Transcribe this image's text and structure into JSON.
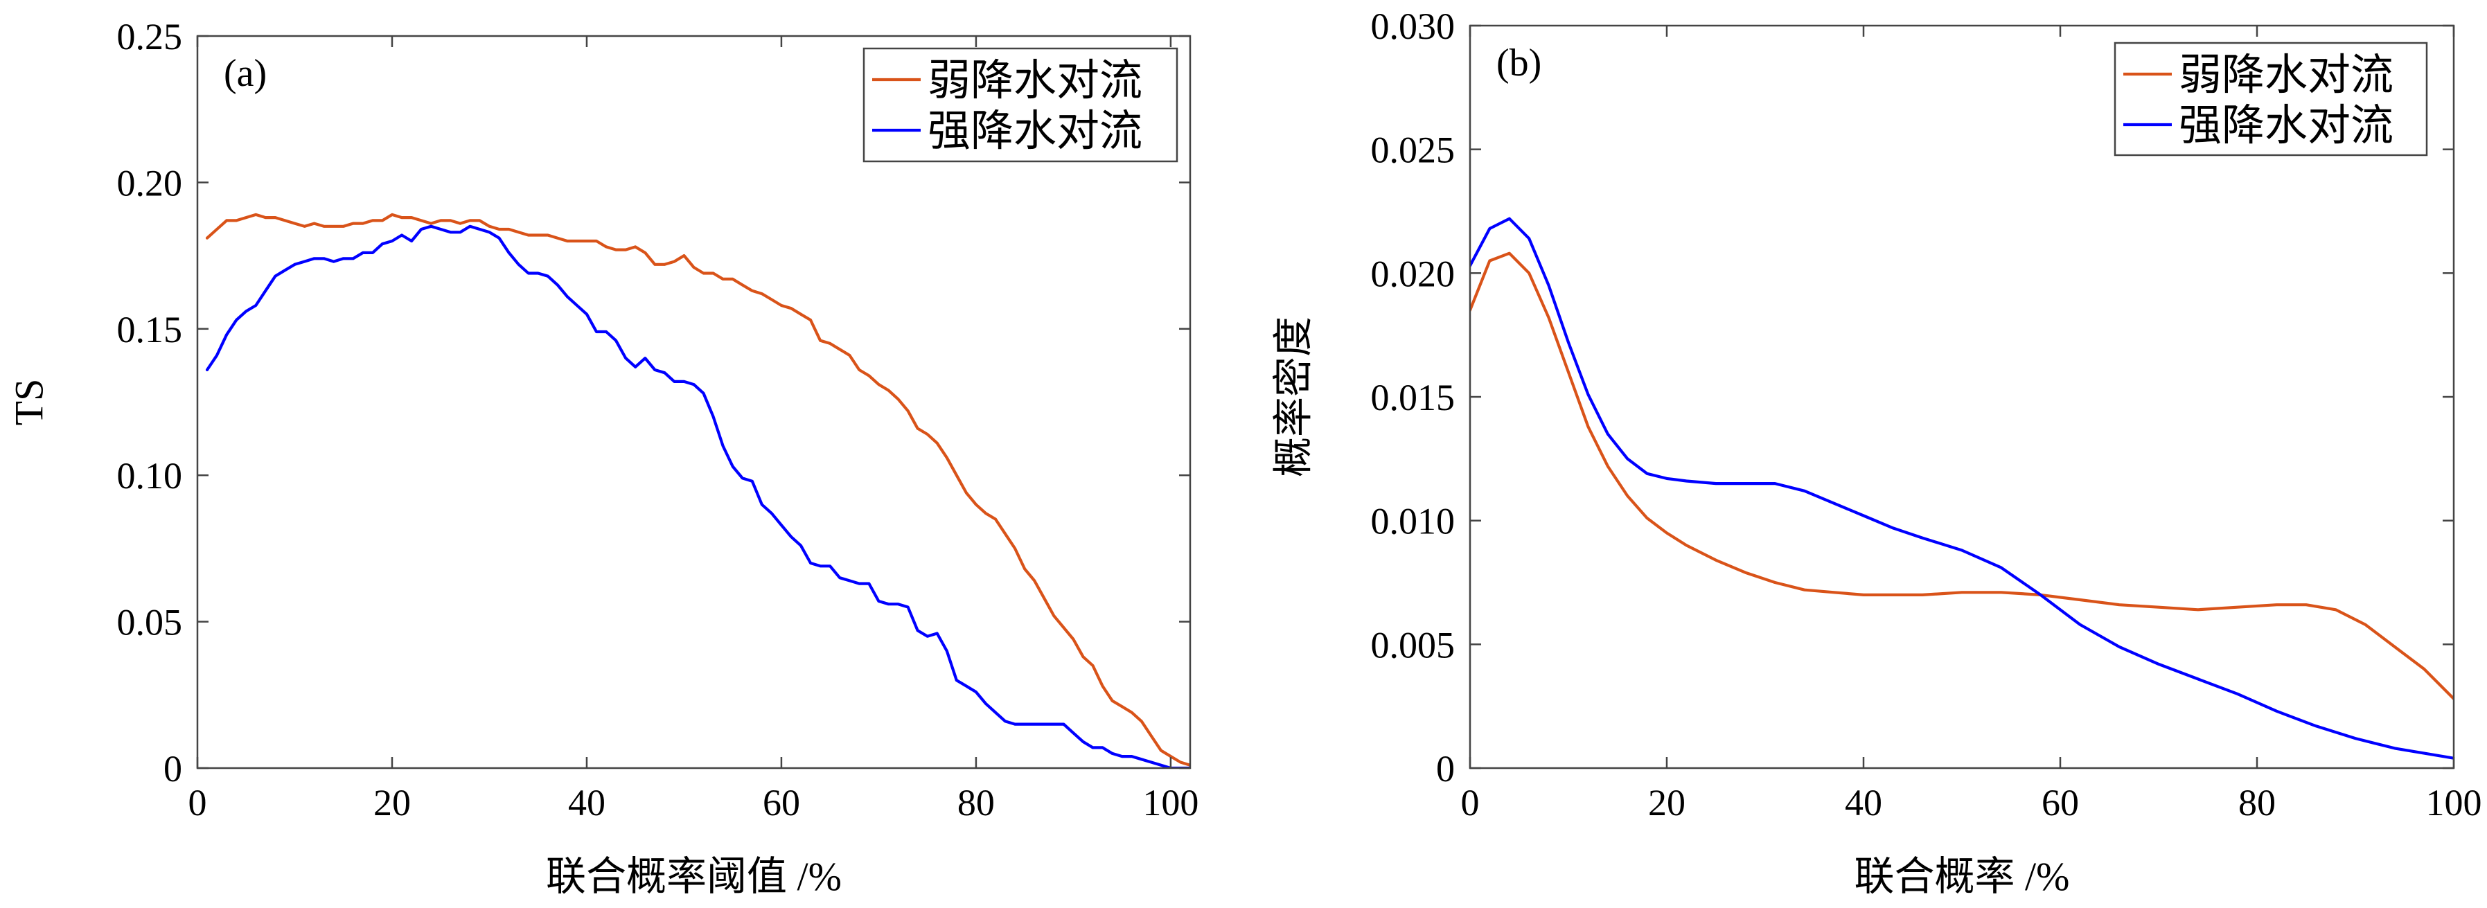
{
  "chart_data": [
    {
      "type": "line",
      "panel_label": "(a)",
      "xlabel": "联合概率阈值 /%",
      "ylabel": "TS",
      "xlim": [
        0,
        102
      ],
      "ylim": [
        0,
        0.25
      ],
      "xticks": [
        0,
        20,
        40,
        60,
        80,
        100
      ],
      "xtick_labels": [
        "0",
        "20",
        "40",
        "60",
        "80",
        "100"
      ],
      "yticks": [
        0,
        0.05,
        0.1,
        0.15,
        0.2,
        0.25
      ],
      "ytick_labels": [
        "0",
        "0.05",
        "0.10",
        "0.15",
        "0.20",
        "0.25"
      ],
      "legend_position": "top-right",
      "grid": false,
      "series": [
        {
          "name": "弱降水对流",
          "color": "#D95319",
          "x": [
            1,
            2,
            3,
            4,
            5,
            6,
            7,
            8,
            9,
            10,
            11,
            12,
            13,
            14,
            15,
            16,
            17,
            18,
            19,
            20,
            21,
            22,
            23,
            24,
            25,
            26,
            27,
            28,
            29,
            30,
            31,
            32,
            33,
            34,
            35,
            36,
            37,
            38,
            39,
            40,
            41,
            42,
            43,
            44,
            45,
            46,
            47,
            48,
            49,
            50,
            51,
            52,
            53,
            54,
            55,
            56,
            57,
            58,
            59,
            60,
            61,
            62,
            63,
            64,
            65,
            66,
            67,
            68,
            69,
            70,
            71,
            72,
            73,
            74,
            75,
            76,
            77,
            78,
            79,
            80,
            81,
            82,
            83,
            84,
            85,
            86,
            87,
            88,
            89,
            90,
            91,
            92,
            93,
            94,
            95,
            96,
            97,
            98,
            99,
            100,
            101,
            102
          ],
          "y": [
            0.181,
            0.184,
            0.187,
            0.187,
            0.188,
            0.189,
            0.188,
            0.188,
            0.187,
            0.186,
            0.185,
            0.186,
            0.185,
            0.185,
            0.185,
            0.186,
            0.186,
            0.187,
            0.187,
            0.189,
            0.188,
            0.188,
            0.187,
            0.186,
            0.187,
            0.187,
            0.186,
            0.187,
            0.187,
            0.185,
            0.184,
            0.184,
            0.183,
            0.182,
            0.182,
            0.182,
            0.181,
            0.18,
            0.18,
            0.18,
            0.18,
            0.178,
            0.177,
            0.177,
            0.178,
            0.176,
            0.172,
            0.172,
            0.173,
            0.175,
            0.171,
            0.169,
            0.169,
            0.167,
            0.167,
            0.165,
            0.163,
            0.162,
            0.16,
            0.158,
            0.157,
            0.155,
            0.153,
            0.146,
            0.145,
            0.143,
            0.141,
            0.136,
            0.134,
            0.131,
            0.129,
            0.126,
            0.122,
            0.116,
            0.114,
            0.111,
            0.106,
            0.1,
            0.094,
            0.09,
            0.087,
            0.085,
            0.08,
            0.075,
            0.068,
            0.064,
            0.058,
            0.052,
            0.048,
            0.044,
            0.038,
            0.035,
            0.028,
            0.023,
            0.021,
            0.019,
            0.016,
            0.011,
            0.006,
            0.004,
            0.002,
            0.001
          ]
        },
        {
          "name": "强降水对流",
          "color": "#0000FF",
          "x": [
            1,
            2,
            3,
            4,
            5,
            6,
            7,
            8,
            9,
            10,
            11,
            12,
            13,
            14,
            15,
            16,
            17,
            18,
            19,
            20,
            21,
            22,
            23,
            24,
            25,
            26,
            27,
            28,
            29,
            30,
            31,
            32,
            33,
            34,
            35,
            36,
            37,
            38,
            39,
            40,
            41,
            42,
            43,
            44,
            45,
            46,
            47,
            48,
            49,
            50,
            51,
            52,
            53,
            54,
            55,
            56,
            57,
            58,
            59,
            60,
            61,
            62,
            63,
            64,
            65,
            66,
            67,
            68,
            69,
            70,
            71,
            72,
            73,
            74,
            75,
            76,
            77,
            78,
            79,
            80,
            81,
            82,
            83,
            84,
            85,
            86,
            87,
            88,
            89,
            90,
            91,
            92,
            93,
            94,
            95,
            96,
            97,
            98,
            99,
            100,
            101,
            102
          ],
          "y": [
            0.136,
            0.141,
            0.148,
            0.153,
            0.156,
            0.158,
            0.163,
            0.168,
            0.17,
            0.172,
            0.173,
            0.174,
            0.174,
            0.173,
            0.174,
            0.174,
            0.176,
            0.176,
            0.179,
            0.18,
            0.182,
            0.18,
            0.184,
            0.185,
            0.184,
            0.183,
            0.183,
            0.185,
            0.184,
            0.183,
            0.181,
            0.176,
            0.172,
            0.169,
            0.169,
            0.168,
            0.165,
            0.161,
            0.158,
            0.155,
            0.149,
            0.149,
            0.146,
            0.14,
            0.137,
            0.14,
            0.136,
            0.135,
            0.132,
            0.132,
            0.131,
            0.128,
            0.12,
            0.11,
            0.103,
            0.099,
            0.098,
            0.09,
            0.087,
            0.083,
            0.079,
            0.076,
            0.07,
            0.069,
            0.069,
            0.065,
            0.064,
            0.063,
            0.063,
            0.057,
            0.056,
            0.056,
            0.055,
            0.047,
            0.045,
            0.046,
            0.04,
            0.03,
            0.028,
            0.026,
            0.022,
            0.019,
            0.016,
            0.015,
            0.015,
            0.015,
            0.015,
            0.015,
            0.015,
            0.012,
            0.009,
            0.007,
            0.007,
            0.005,
            0.004,
            0.004,
            0.003,
            0.002,
            0.001,
            0.0,
            0.0,
            0.0
          ]
        }
      ]
    },
    {
      "type": "line",
      "panel_label": "(b)",
      "xlabel": "联合概率 /%",
      "ylabel": "概率密度",
      "xlim": [
        0,
        100
      ],
      "ylim": [
        0,
        0.03
      ],
      "xticks": [
        0,
        20,
        40,
        60,
        80,
        100
      ],
      "xtick_labels": [
        "0",
        "20",
        "40",
        "60",
        "80",
        "100"
      ],
      "yticks": [
        0,
        0.005,
        0.01,
        0.015,
        0.02,
        0.025,
        0.03
      ],
      "ytick_labels": [
        "0",
        "0.005",
        "0.010",
        "0.015",
        "0.020",
        "0.025",
        "0.030"
      ],
      "legend_position": "top-right",
      "grid": false,
      "series": [
        {
          "name": "弱降水对流",
          "color": "#D95319",
          "x": [
            0,
            2,
            4,
            6,
            8,
            10,
            12,
            14,
            16,
            18,
            20,
            22,
            25,
            28,
            31,
            34,
            37,
            40,
            43,
            46,
            50,
            54,
            58,
            62,
            66,
            70,
            74,
            78,
            82,
            85,
            88,
            91,
            94,
            97,
            100
          ],
          "y": [
            0.0185,
            0.0205,
            0.0208,
            0.02,
            0.0182,
            0.016,
            0.0138,
            0.0122,
            0.011,
            0.0101,
            0.0095,
            0.009,
            0.0084,
            0.0079,
            0.0075,
            0.0072,
            0.0071,
            0.007,
            0.007,
            0.007,
            0.0071,
            0.0071,
            0.007,
            0.0068,
            0.0066,
            0.0065,
            0.0064,
            0.0065,
            0.0066,
            0.0066,
            0.0064,
            0.0058,
            0.0049,
            0.004,
            0.0028
          ]
        },
        {
          "name": "强降水对流",
          "color": "#0000FF",
          "x": [
            0,
            2,
            4,
            6,
            8,
            10,
            12,
            14,
            16,
            18,
            20,
            22,
            25,
            28,
            31,
            34,
            37,
            40,
            43,
            46,
            50,
            54,
            58,
            62,
            66,
            70,
            74,
            78,
            82,
            86,
            90,
            94,
            97,
            100
          ],
          "y": [
            0.0203,
            0.0218,
            0.0222,
            0.0214,
            0.0195,
            0.0172,
            0.0151,
            0.0135,
            0.0125,
            0.0119,
            0.0117,
            0.0116,
            0.0115,
            0.0115,
            0.0115,
            0.0112,
            0.0107,
            0.0102,
            0.0097,
            0.0093,
            0.0088,
            0.0081,
            0.007,
            0.0058,
            0.0049,
            0.0042,
            0.0036,
            0.003,
            0.0023,
            0.0017,
            0.0012,
            0.0008,
            0.0006,
            0.0004
          ]
        }
      ]
    }
  ]
}
